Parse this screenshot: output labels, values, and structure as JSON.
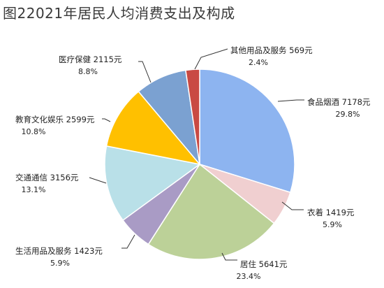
{
  "title": "图22021年居民人均消费支出及构成",
  "chart_data": {
    "type": "pie",
    "title": "图22021年居民人均消费支出及构成",
    "unit": "元",
    "slices": [
      {
        "name": "食品烟酒",
        "value": 7178,
        "value_label": "7178元",
        "percent_label": "29.8%",
        "color": "#8db4f0"
      },
      {
        "name": "衣着",
        "value": 1419,
        "value_label": "1419元",
        "percent_label": "5.9%",
        "color": "#f0cfd0"
      },
      {
        "name": "居住",
        "value": 5641,
        "value_label": "5641元",
        "percent_label": "23.4%",
        "color": "#bcd198"
      },
      {
        "name": "生活用品及服务",
        "value": 1423,
        "value_label": "1423元",
        "percent_label": "5.9%",
        "color": "#a99bc5"
      },
      {
        "name": "交通通信",
        "value": 3156,
        "value_label": "3156元",
        "percent_label": "13.1%",
        "color": "#b9e0e8"
      },
      {
        "name": "教育文化娱乐",
        "value": 2599,
        "value_label": "2599元",
        "percent_label": "10.8%",
        "color": "#ffc000"
      },
      {
        "name": "医疗保健",
        "value": 2115,
        "value_label": "2115元",
        "percent_label": "8.8%",
        "color": "#7ba1d1"
      },
      {
        "name": "其他用品及服务",
        "value": 569,
        "value_label": "569元",
        "percent_label": "2.4%",
        "color": "#c94a43"
      }
    ]
  }
}
